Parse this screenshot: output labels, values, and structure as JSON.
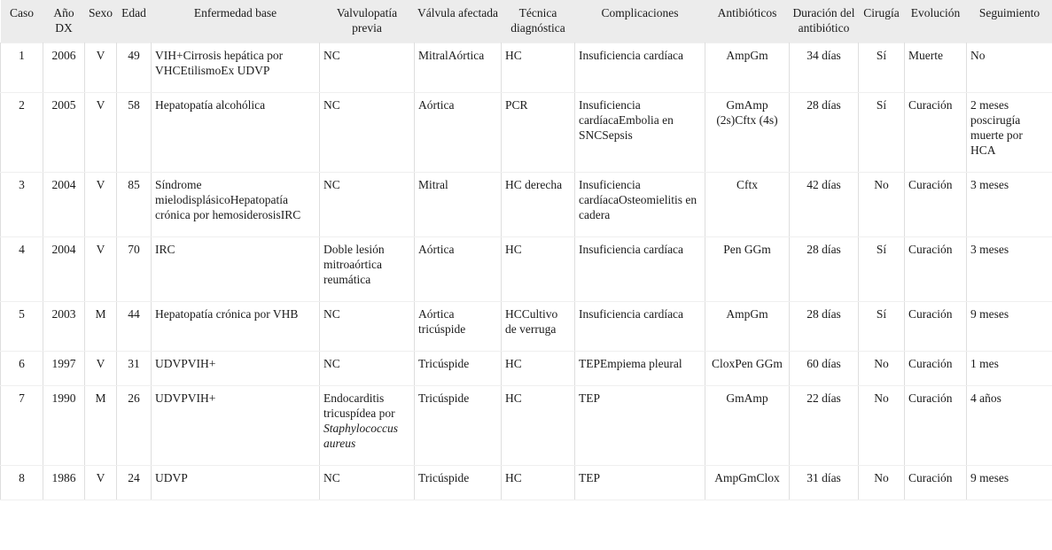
{
  "table": {
    "columns": [
      {
        "key": "caso",
        "label": "Caso",
        "align": "center"
      },
      {
        "key": "ano_dx",
        "label": "Año DX",
        "align": "center"
      },
      {
        "key": "sexo",
        "label": "Sexo",
        "align": "center"
      },
      {
        "key": "edad",
        "label": "Edad",
        "align": "center"
      },
      {
        "key": "enfermedad",
        "label": "Enfermedad base",
        "align": "left"
      },
      {
        "key": "valvulopatia",
        "label": "Valvulopatía previa",
        "align": "left"
      },
      {
        "key": "valvula",
        "label": "Válvula afectada",
        "align": "left"
      },
      {
        "key": "tecnica",
        "label": "Técnica diagnóstica",
        "align": "left"
      },
      {
        "key": "complicaciones",
        "label": "Complicaciones",
        "align": "left"
      },
      {
        "key": "antibioticos",
        "label": "Antibióticos",
        "align": "center"
      },
      {
        "key": "duracion",
        "label": "Duración del antibiótico",
        "align": "center"
      },
      {
        "key": "cirugia",
        "label": "Cirugía",
        "align": "center"
      },
      {
        "key": "evolucion",
        "label": "Evolución",
        "align": "left"
      },
      {
        "key": "seguimiento",
        "label": "Seguimiento",
        "align": "left"
      }
    ],
    "rows": [
      {
        "caso": "1",
        "ano_dx": "2006",
        "sexo": "V",
        "edad": "49",
        "enfermedad": "VIH+Cirrosis hepática por VHCEtilismoEx UDVP",
        "valvulopatia": "NC",
        "valvula": "MitralAórtica",
        "tecnica": "HC",
        "complicaciones": "Insuficiencia cardíaca",
        "antibioticos": "AmpGm",
        "duracion": "34 días",
        "cirugia": "Sí",
        "evolucion": "Muerte",
        "seguimiento": "No"
      },
      {
        "caso": "2",
        "ano_dx": "2005",
        "sexo": "V",
        "edad": "58",
        "enfermedad": "Hepatopatía alcohólica",
        "valvulopatia": "NC",
        "valvula": "Aórtica",
        "tecnica": "PCR",
        "complicaciones": "Insuficiencia cardíacaEmbolia en SNCSepsis",
        "antibioticos": "GmAmp (2s)Cftx (4s)",
        "duracion": "28 días",
        "cirugia": "Sí",
        "evolucion": "Curación",
        "seguimiento": "2 meses poscirugía muerte por HCA"
      },
      {
        "caso": "3",
        "ano_dx": "2004",
        "sexo": "V",
        "edad": "85",
        "enfermedad": "Síndrome mielodisplásicoHepatopatía crónica por hemosiderosisIRC",
        "valvulopatia": "NC",
        "valvula": "Mitral",
        "tecnica": "HC derecha",
        "complicaciones": "Insuficiencia cardíacaOsteomielitis en cadera",
        "antibioticos": "Cftx",
        "duracion": "42 días",
        "cirugia": "No",
        "evolucion": "Curación",
        "seguimiento": "3 meses"
      },
      {
        "caso": "4",
        "ano_dx": "2004",
        "sexo": "V",
        "edad": "70",
        "enfermedad": "IRC",
        "valvulopatia": "Doble lesión mitroaórtica reumática",
        "valvula": "Aórtica",
        "tecnica": "HC",
        "complicaciones": "Insuficiencia cardíaca",
        "antibioticos": "Pen GGm",
        "duracion": "28 días",
        "cirugia": "Sí",
        "evolucion": "Curación",
        "seguimiento": "3 meses"
      },
      {
        "caso": "5",
        "ano_dx": "2003",
        "sexo": "M",
        "edad": "44",
        "enfermedad": "Hepatopatía crónica por VHB",
        "valvulopatia": "NC",
        "valvula": "Aórtica tricúspide",
        "tecnica": "HCCultivo de verruga",
        "complicaciones": "Insuficiencia cardíaca",
        "antibioticos": "AmpGm",
        "duracion": "28 días",
        "cirugia": "Sí",
        "evolucion": "Curación",
        "seguimiento": "9 meses"
      },
      {
        "caso": "6",
        "ano_dx": "1997",
        "sexo": "V",
        "edad": "31",
        "enfermedad": "UDVPVIH+",
        "valvulopatia": "NC",
        "valvula": "Tricúspide",
        "tecnica": "HC",
        "complicaciones": "TEPEmpiema pleural",
        "antibioticos": "CloxPen GGm",
        "duracion": "60 días",
        "cirugia": "No",
        "evolucion": "Curación",
        "seguimiento": "1 mes"
      },
      {
        "caso": "7",
        "ano_dx": "1990",
        "sexo": "M",
        "edad": "26",
        "enfermedad": "UDVPVIH+",
        "valvulopatia": {
          "parts": [
            {
              "text": "Endocarditis tricuspídea por ",
              "italic": false
            },
            {
              "text": "Staphylococcus aureus",
              "italic": true
            }
          ]
        },
        "valvula": "Tricúspide",
        "tecnica": "HC",
        "complicaciones": "TEP",
        "antibioticos": "GmAmp",
        "duracion": "22 días",
        "cirugia": "No",
        "evolucion": "Curación",
        "seguimiento": "4 años"
      },
      {
        "caso": "8",
        "ano_dx": "1986",
        "sexo": "V",
        "edad": "24",
        "enfermedad": "UDVP",
        "valvulopatia": "NC",
        "valvula": "Tricúspide",
        "tecnica": "HC",
        "complicaciones": "TEP",
        "antibioticos": "AmpGmClox",
        "duracion": "31 días",
        "cirugia": "No",
        "evolucion": "Curación",
        "seguimiento": "9 meses"
      }
    ]
  }
}
